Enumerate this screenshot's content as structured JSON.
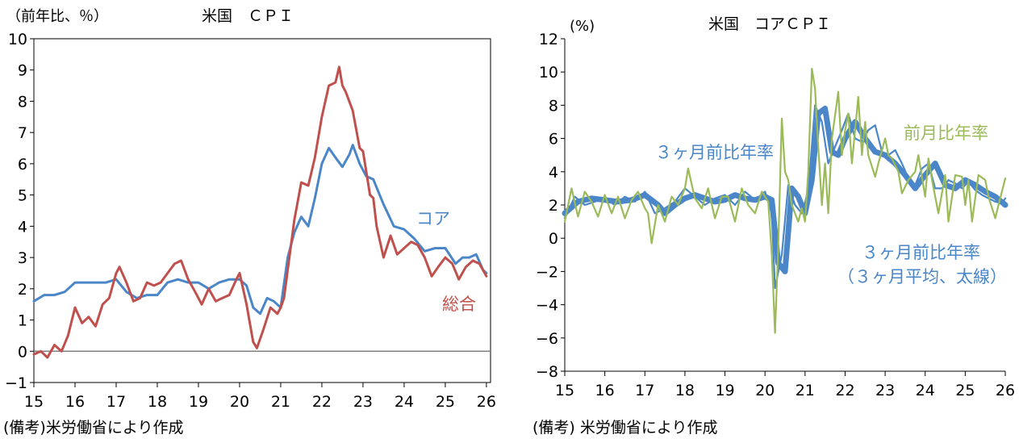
{
  "left_panel": {
    "note": "(備考)米労働省により作成"
  },
  "right_panel": {
    "note": "(備考) 米労働省により作成"
  },
  "colors": {
    "core": "#4a86c8",
    "headline": "#c0504d",
    "mom": "#9bbb59",
    "axis": "#000000",
    "zero_line": "#808080"
  },
  "chart_data": [
    {
      "type": "line",
      "title": "米国　ＣＰＩ",
      "ylabel": "（前年比、％）",
      "xlabel": "",
      "ylim": [
        -1,
        10
      ],
      "yticks": [
        -1,
        0,
        1,
        2,
        3,
        4,
        5,
        6,
        7,
        8,
        9,
        10
      ],
      "xlim": [
        2015,
        2026.1
      ],
      "x_ticks": [
        "15",
        "16",
        "17",
        "18",
        "19",
        "20",
        "21",
        "22",
        "23",
        "24",
        "25",
        "26"
      ],
      "x_tick_values": [
        2015,
        2016,
        2017,
        2018,
        2019,
        2020,
        2021,
        2022,
        2023,
        2024,
        2025,
        2026
      ],
      "grid": false,
      "zero_line": true,
      "series": [
        {
          "name": "コア",
          "color": "#4a86c8",
          "x": [
            2015.0,
            2015.25,
            2015.5,
            2015.75,
            2016.0,
            2016.25,
            2016.5,
            2016.75,
            2017.0,
            2017.25,
            2017.5,
            2017.75,
            2018.0,
            2018.25,
            2018.5,
            2018.75,
            2019.0,
            2019.25,
            2019.5,
            2019.75,
            2020.0,
            2020.17,
            2020.33,
            2020.5,
            2020.67,
            2020.83,
            2021.0,
            2021.17,
            2021.33,
            2021.5,
            2021.67,
            2021.83,
            2022.0,
            2022.17,
            2022.33,
            2022.5,
            2022.67,
            2022.75,
            2022.92,
            2023.08,
            2023.25,
            2023.5,
            2023.75,
            2024.0,
            2024.25,
            2024.5,
            2024.75,
            2025.0,
            2025.25,
            2025.42,
            2025.58,
            2025.75,
            2025.92,
            2026.0
          ],
          "values": [
            1.6,
            1.8,
            1.8,
            1.9,
            2.2,
            2.2,
            2.2,
            2.2,
            2.3,
            1.9,
            1.7,
            1.8,
            1.8,
            2.2,
            2.3,
            2.2,
            2.2,
            2.0,
            2.2,
            2.3,
            2.3,
            2.1,
            1.4,
            1.2,
            1.7,
            1.6,
            1.4,
            3.0,
            3.8,
            4.3,
            4.0,
            4.9,
            6.0,
            6.5,
            6.2,
            5.9,
            6.3,
            6.6,
            6.0,
            5.6,
            5.5,
            4.7,
            4.0,
            3.9,
            3.6,
            3.2,
            3.3,
            3.3,
            2.8,
            3.0,
            3.0,
            3.1,
            2.6,
            2.5
          ]
        },
        {
          "name": "総合",
          "color": "#c0504d",
          "x": [
            2015.0,
            2015.17,
            2015.33,
            2015.5,
            2015.67,
            2015.83,
            2016.0,
            2016.17,
            2016.33,
            2016.5,
            2016.67,
            2016.83,
            2017.0,
            2017.08,
            2017.25,
            2017.42,
            2017.58,
            2017.75,
            2017.92,
            2018.08,
            2018.25,
            2018.42,
            2018.58,
            2018.75,
            2018.92,
            2019.08,
            2019.25,
            2019.42,
            2019.58,
            2019.75,
            2019.92,
            2020.0,
            2020.17,
            2020.33,
            2020.42,
            2020.58,
            2020.75,
            2020.92,
            2021.0,
            2021.08,
            2021.17,
            2021.33,
            2021.5,
            2021.67,
            2021.83,
            2022.0,
            2022.17,
            2022.33,
            2022.42,
            2022.5,
            2022.58,
            2022.75,
            2022.92,
            2023.0,
            2023.17,
            2023.25,
            2023.33,
            2023.5,
            2023.67,
            2023.83,
            2024.0,
            2024.17,
            2024.33,
            2024.5,
            2024.67,
            2024.83,
            2025.0,
            2025.17,
            2025.33,
            2025.5,
            2025.67,
            2025.83,
            2026.0
          ],
          "values": [
            -0.1,
            0.0,
            -0.2,
            0.2,
            0.0,
            0.5,
            1.4,
            0.9,
            1.1,
            0.8,
            1.5,
            1.7,
            2.5,
            2.7,
            2.2,
            1.6,
            1.7,
            2.2,
            2.1,
            2.2,
            2.5,
            2.8,
            2.9,
            2.3,
            1.9,
            1.5,
            2.0,
            1.6,
            1.7,
            1.8,
            2.3,
            2.5,
            1.5,
            0.3,
            0.1,
            0.7,
            1.4,
            1.2,
            1.4,
            1.7,
            2.6,
            4.2,
            5.4,
            5.3,
            6.2,
            7.5,
            8.5,
            8.6,
            9.1,
            8.5,
            8.3,
            7.7,
            6.5,
            6.4,
            5.0,
            4.9,
            4.0,
            3.0,
            3.7,
            3.1,
            3.3,
            3.5,
            3.4,
            3.0,
            2.4,
            2.7,
            3.0,
            2.8,
            2.3,
            2.7,
            2.9,
            2.8,
            2.4
          ]
        }
      ],
      "annotations": [
        {
          "text": "コア",
          "color": "#4a86c8"
        },
        {
          "text": "総合",
          "color": "#c0504d"
        }
      ]
    },
    {
      "type": "line",
      "title": "米国　コアＣＰＩ",
      "ylabel": "(%)",
      "xlabel": "",
      "ylim": [
        -8,
        12
      ],
      "yticks": [
        -8,
        -6,
        -4,
        -2,
        0,
        2,
        4,
        6,
        8,
        10,
        12
      ],
      "xlim": [
        2015,
        2026
      ],
      "x_ticks": [
        "15",
        "16",
        "17",
        "18",
        "19",
        "20",
        "21",
        "22",
        "23",
        "24",
        "25",
        "26"
      ],
      "x_tick_values": [
        2015,
        2016,
        2017,
        2018,
        2019,
        2020,
        2021,
        2022,
        2023,
        2024,
        2025,
        2026
      ],
      "grid": false,
      "zero_line": false,
      "series": [
        {
          "name": "３ヶ月前比年率（３ヶ月平均、太線）",
          "color": "#4a86c8",
          "line_width": "thick",
          "x": [
            2015.0,
            2015.33,
            2015.67,
            2016.0,
            2016.33,
            2016.67,
            2017.0,
            2017.33,
            2017.5,
            2017.75,
            2018.0,
            2018.25,
            2018.5,
            2018.75,
            2019.0,
            2019.25,
            2019.5,
            2019.75,
            2020.0,
            2020.17,
            2020.33,
            2020.5,
            2020.67,
            2020.83,
            2021.0,
            2021.17,
            2021.33,
            2021.5,
            2021.67,
            2021.83,
            2022.0,
            2022.25,
            2022.5,
            2022.75,
            2023.0,
            2023.25,
            2023.5,
            2023.75,
            2024.0,
            2024.25,
            2024.5,
            2024.75,
            2025.0,
            2025.25,
            2025.5,
            2025.75,
            2026.0
          ],
          "values": [
            1.5,
            2.2,
            2.4,
            2.3,
            2.2,
            2.3,
            2.6,
            2.0,
            1.5,
            2.0,
            2.4,
            2.6,
            2.4,
            2.2,
            2.3,
            2.6,
            2.4,
            2.3,
            2.5,
            2.3,
            -1.5,
            -2.0,
            3.0,
            2.5,
            1.5,
            3.5,
            7.5,
            7.8,
            5.2,
            5.0,
            6.0,
            7.0,
            6.0,
            5.2,
            5.0,
            4.5,
            3.8,
            3.0,
            3.8,
            4.5,
            3.2,
            3.0,
            3.5,
            3.2,
            2.8,
            2.5,
            2.0
          ]
        },
        {
          "name": "３ヶ月前比年率",
          "color": "#4a86c8",
          "line_width": "thin",
          "x": [
            2015.0,
            2015.25,
            2015.5,
            2015.75,
            2016.0,
            2016.25,
            2016.5,
            2016.75,
            2017.0,
            2017.25,
            2017.5,
            2017.75,
            2018.0,
            2018.25,
            2018.5,
            2018.75,
            2019.0,
            2019.25,
            2019.5,
            2019.75,
            2020.0,
            2020.17,
            2020.25,
            2020.42,
            2020.58,
            2020.75,
            2020.92,
            2021.08,
            2021.25,
            2021.42,
            2021.58,
            2021.75,
            2021.92,
            2022.08,
            2022.25,
            2022.42,
            2022.58,
            2022.75,
            2022.92,
            2023.08,
            2023.25,
            2023.42,
            2023.58,
            2023.75,
            2023.92,
            2024.08,
            2024.25,
            2024.42,
            2024.58,
            2024.75,
            2024.92,
            2025.08,
            2025.25,
            2025.42,
            2025.58,
            2025.75,
            2025.92,
            2026.0
          ],
          "values": [
            1.2,
            2.5,
            2.0,
            2.2,
            2.4,
            2.0,
            2.5,
            2.2,
            2.8,
            1.5,
            1.8,
            2.2,
            3.0,
            2.5,
            2.0,
            2.4,
            2.6,
            2.0,
            2.8,
            2.3,
            2.8,
            1.5,
            -3.0,
            -1.0,
            3.2,
            2.0,
            1.5,
            2.8,
            8.0,
            7.0,
            4.5,
            5.5,
            6.5,
            7.5,
            6.0,
            5.8,
            6.5,
            6.8,
            5.2,
            5.0,
            5.3,
            4.5,
            3.6,
            3.2,
            4.2,
            4.5,
            3.0,
            3.0,
            3.5,
            3.3,
            3.0,
            3.4,
            2.9,
            2.6,
            2.4,
            2.2,
            2.1,
            2.4
          ]
        },
        {
          "name": "前月比年率",
          "color": "#9bbb59",
          "line_width": "thin",
          "x": [
            2015.0,
            2015.17,
            2015.33,
            2015.5,
            2015.67,
            2015.83,
            2016.0,
            2016.17,
            2016.33,
            2016.5,
            2016.67,
            2016.83,
            2017.0,
            2017.08,
            2017.17,
            2017.33,
            2017.5,
            2017.67,
            2017.83,
            2018.0,
            2018.08,
            2018.25,
            2018.42,
            2018.58,
            2018.75,
            2018.92,
            2019.08,
            2019.25,
            2019.42,
            2019.58,
            2019.75,
            2019.92,
            2020.08,
            2020.17,
            2020.25,
            2020.33,
            2020.42,
            2020.5,
            2020.58,
            2020.67,
            2020.83,
            2020.92,
            2021.0,
            2021.08,
            2021.17,
            2021.25,
            2021.33,
            2021.42,
            2021.5,
            2021.58,
            2021.67,
            2021.83,
            2021.92,
            2022.0,
            2022.08,
            2022.17,
            2022.33,
            2022.42,
            2022.5,
            2022.58,
            2022.75,
            2022.83,
            2023.0,
            2023.08,
            2023.17,
            2023.33,
            2023.42,
            2023.58,
            2023.75,
            2023.83,
            2024.0,
            2024.08,
            2024.17,
            2024.33,
            2024.5,
            2024.58,
            2024.75,
            2024.92,
            2025.0,
            2025.08,
            2025.17,
            2025.33,
            2025.5,
            2025.58,
            2025.75,
            2025.83,
            2026.0
          ],
          "values": [
            1.0,
            3.0,
            1.3,
            2.8,
            2.2,
            1.3,
            2.6,
            1.5,
            2.5,
            1.2,
            2.3,
            2.8,
            1.8,
            1.5,
            -0.3,
            2.0,
            1.0,
            2.5,
            2.0,
            3.0,
            4.2,
            2.4,
            1.8,
            3.0,
            1.2,
            2.5,
            2.5,
            1.0,
            3.0,
            2.0,
            1.5,
            2.8,
            2.2,
            -1.0,
            -5.7,
            -0.5,
            7.2,
            4.0,
            3.5,
            2.0,
            1.0,
            1.8,
            1.0,
            4.0,
            10.2,
            9.0,
            5.5,
            2.0,
            4.5,
            1.5,
            6.0,
            8.8,
            5.0,
            6.5,
            7.5,
            4.5,
            8.5,
            5.0,
            7.0,
            5.0,
            3.7,
            4.5,
            6.0,
            5.0,
            4.8,
            4.0,
            2.7,
            3.5,
            4.0,
            5.0,
            2.5,
            4.8,
            3.5,
            1.5,
            3.8,
            1.0,
            3.8,
            3.7,
            2.0,
            3.5,
            1.0,
            3.8,
            3.5,
            2.5,
            1.2,
            2.0,
            3.6
          ]
        }
      ],
      "annotations": [
        {
          "text": "３ヶ月前比年率",
          "color": "#4a86c8"
        },
        {
          "text": "前月比年率",
          "color": "#9bbb59"
        },
        {
          "text": "３ヶ月前比年率",
          "color": "#4a86c8"
        },
        {
          "text": "（３ヶ月平均、太線）",
          "color": "#4a86c8"
        }
      ]
    }
  ]
}
